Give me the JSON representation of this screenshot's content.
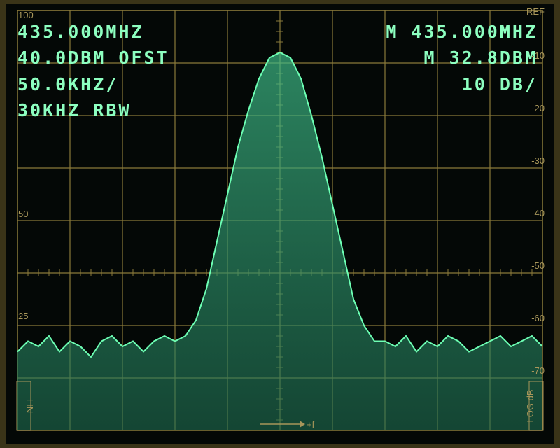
{
  "chart_data": {
    "type": "line",
    "readout_left": [
      "435.000MHZ",
      "40.0DBM OFST",
      "50.0KHZ/",
      "30KHZ RBW"
    ],
    "readout_right": [
      "M 435.000MHZ",
      "M 32.8DBM",
      "10 DB/"
    ],
    "left_scale_labels": [
      "100",
      "50",
      "25"
    ],
    "lin_label": "LIN",
    "log_label": "LOG dB",
    "freq_label": "+f",
    "x": [
      -250,
      -240,
      -230,
      -220,
      -210,
      -200,
      -190,
      -180,
      -170,
      -160,
      -150,
      -140,
      -130,
      -120,
      -110,
      -100,
      -90,
      -80,
      -70,
      -60,
      -50,
      -40,
      -30,
      -20,
      -10,
      0,
      10,
      20,
      30,
      40,
      50,
      60,
      70,
      80,
      90,
      100,
      110,
      120,
      130,
      140,
      150,
      160,
      170,
      180,
      190,
      200,
      210,
      220,
      230,
      240,
      250
    ],
    "series": [
      {
        "name": "trace",
        "color": "#6dffb4",
        "values": [
          -65,
          -63,
          -64,
          -62,
          -65,
          -63,
          -64,
          -66,
          -63,
          -62,
          -64,
          -63,
          -65,
          -63,
          -62,
          -63,
          -62,
          -59,
          -53,
          -44,
          -35,
          -26,
          -19,
          -13,
          -9,
          -8,
          -9,
          -13,
          -20,
          -28,
          -37,
          -46,
          -55,
          -60,
          -63,
          -63,
          -64,
          -62,
          -65,
          -63,
          -64,
          -62,
          -63,
          -65,
          -64,
          -63,
          -62,
          -64,
          -63,
          -62,
          -64
        ]
      }
    ],
    "xlim": [
      -250,
      250
    ],
    "ylim": [
      -80,
      0
    ],
    "yticks": [
      {
        "value": 0,
        "label": "REF"
      },
      -10,
      -20,
      -30,
      -40,
      -50,
      -60,
      -70
    ],
    "grid": true
  }
}
